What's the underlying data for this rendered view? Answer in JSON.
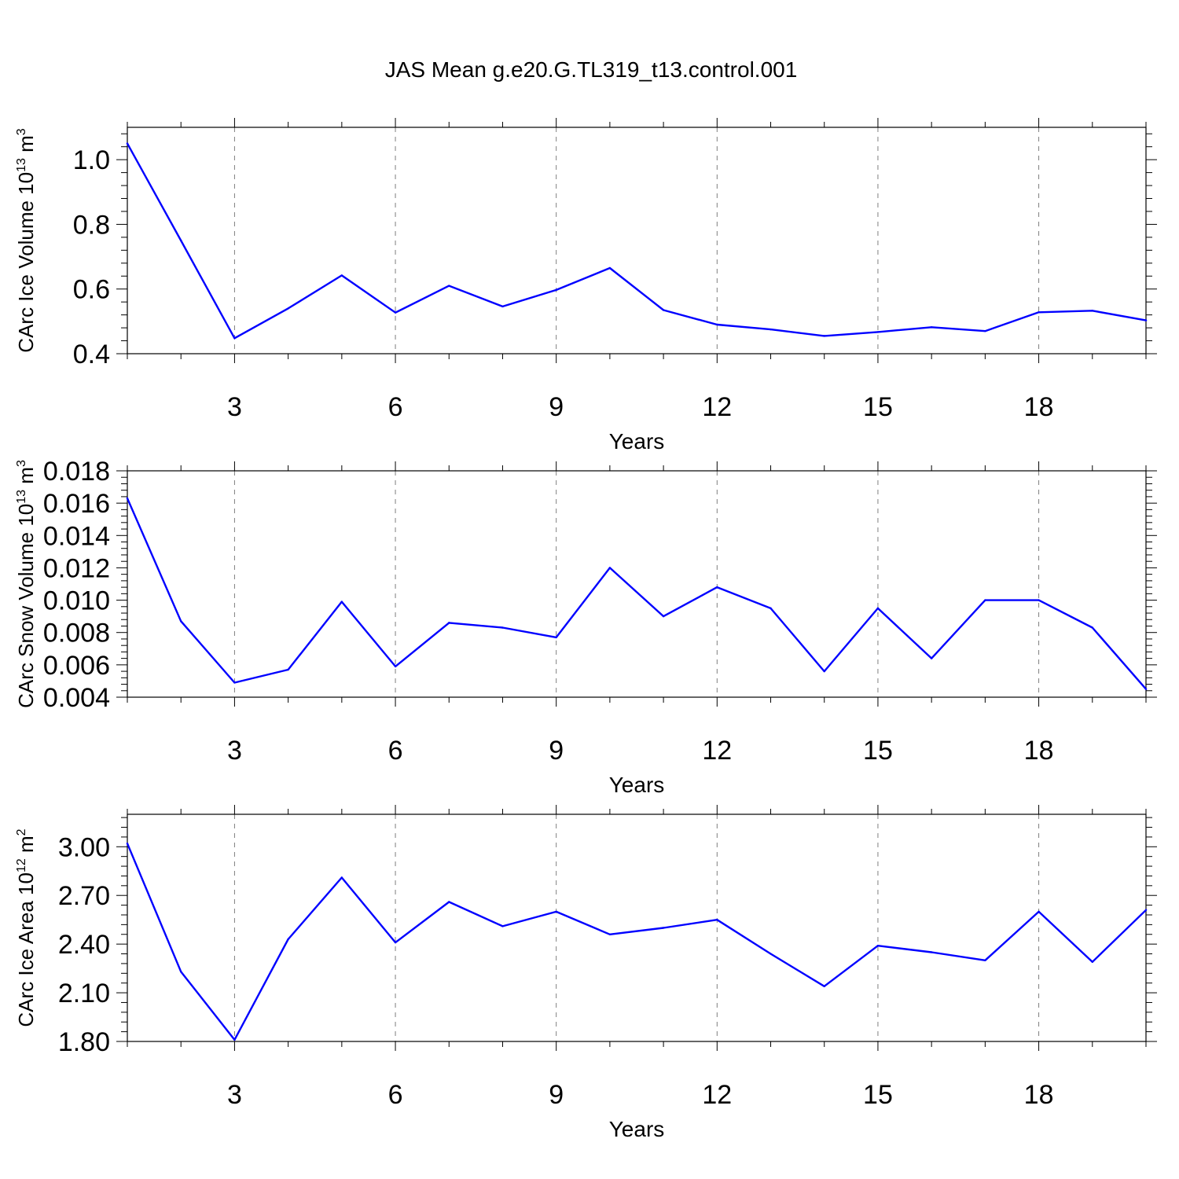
{
  "title": "JAS Mean g.e20.G.TL319_t13.control.001",
  "colors": {
    "line": "#0000ff",
    "axis": "#000000",
    "grid": "#7f7f7f"
  },
  "chart_data": [
    {
      "type": "line",
      "ylabel": {
        "text": "CArc Ice Volume 10",
        "exp": "13",
        "unit": " m",
        "unit_exp": "3"
      },
      "xlabel": "Years",
      "xlim": [
        1,
        20
      ],
      "ylim": [
        0.4,
        1.1
      ],
      "yticks": [
        0.4,
        0.6,
        0.8,
        1.0
      ],
      "ytick_labels": [
        "0.4",
        "0.6",
        "0.8",
        "1.0"
      ],
      "xticks": [
        3,
        6,
        9,
        12,
        15,
        18
      ],
      "xtick_labels": [
        "3",
        "6",
        "9",
        "12",
        "15",
        "18"
      ],
      "grid": "vertical-dashed",
      "series": [
        {
          "name": "CArc Ice Volume",
          "x": [
            1,
            2,
            3,
            4,
            5,
            6,
            7,
            8,
            9,
            10,
            11,
            12,
            13,
            14,
            15,
            16,
            17,
            18,
            19,
            20
          ],
          "values": [
            1.05,
            0.75,
            0.448,
            0.54,
            0.642,
            0.527,
            0.61,
            0.546,
            0.597,
            0.665,
            0.535,
            0.49,
            0.475,
            0.455,
            0.467,
            0.482,
            0.47,
            0.528,
            0.533,
            0.503
          ]
        }
      ]
    },
    {
      "type": "line",
      "ylabel": {
        "text": "CArc Snow Volume 10",
        "exp": "13",
        "unit": " m",
        "unit_exp": "3"
      },
      "xlabel": "Years",
      "xlim": [
        1,
        20
      ],
      "ylim": [
        0.004,
        0.018
      ],
      "yticks": [
        0.004,
        0.006,
        0.008,
        0.01,
        0.012,
        0.014,
        0.016,
        0.018
      ],
      "ytick_labels": [
        "0.004",
        "0.006",
        "0.008",
        "0.010",
        "0.012",
        "0.014",
        "0.016",
        "0.018"
      ],
      "xticks": [
        3,
        6,
        9,
        12,
        15,
        18
      ],
      "xtick_labels": [
        "3",
        "6",
        "9",
        "12",
        "15",
        "18"
      ],
      "grid": "vertical-dashed",
      "series": [
        {
          "name": "CArc Snow Volume",
          "x": [
            1,
            2,
            3,
            4,
            5,
            6,
            7,
            8,
            9,
            10,
            11,
            12,
            13,
            14,
            15,
            16,
            17,
            18,
            19,
            20
          ],
          "values": [
            0.0163,
            0.0087,
            0.0049,
            0.0057,
            0.0099,
            0.0059,
            0.0086,
            0.0083,
            0.0077,
            0.012,
            0.009,
            0.0108,
            0.0095,
            0.0056,
            0.0095,
            0.0064,
            0.01,
            0.01,
            0.0083,
            0.0045
          ]
        }
      ]
    },
    {
      "type": "line",
      "ylabel": {
        "text": "CArc Ice Area 10",
        "exp": "12",
        "unit": " m",
        "unit_exp": "2"
      },
      "xlabel": "Years",
      "xlim": [
        1,
        20
      ],
      "ylim": [
        1.8,
        3.2
      ],
      "yticks": [
        1.8,
        2.1,
        2.4,
        2.7,
        3.0
      ],
      "ytick_labels": [
        "1.80",
        "2.10",
        "2.40",
        "2.70",
        "3.00"
      ],
      "xticks": [
        3,
        6,
        9,
        12,
        15,
        18
      ],
      "xtick_labels": [
        "3",
        "6",
        "9",
        "12",
        "15",
        "18"
      ],
      "grid": "vertical-dashed",
      "series": [
        {
          "name": "CArc Ice Area",
          "x": [
            1,
            2,
            3,
            4,
            5,
            6,
            7,
            8,
            9,
            10,
            11,
            12,
            13,
            14,
            15,
            16,
            17,
            18,
            19,
            20
          ],
          "values": [
            3.02,
            2.23,
            1.81,
            2.43,
            2.81,
            2.41,
            2.66,
            2.51,
            2.6,
            2.46,
            2.5,
            2.55,
            2.34,
            2.14,
            2.39,
            2.35,
            2.3,
            2.6,
            2.29,
            2.61
          ]
        }
      ]
    }
  ]
}
